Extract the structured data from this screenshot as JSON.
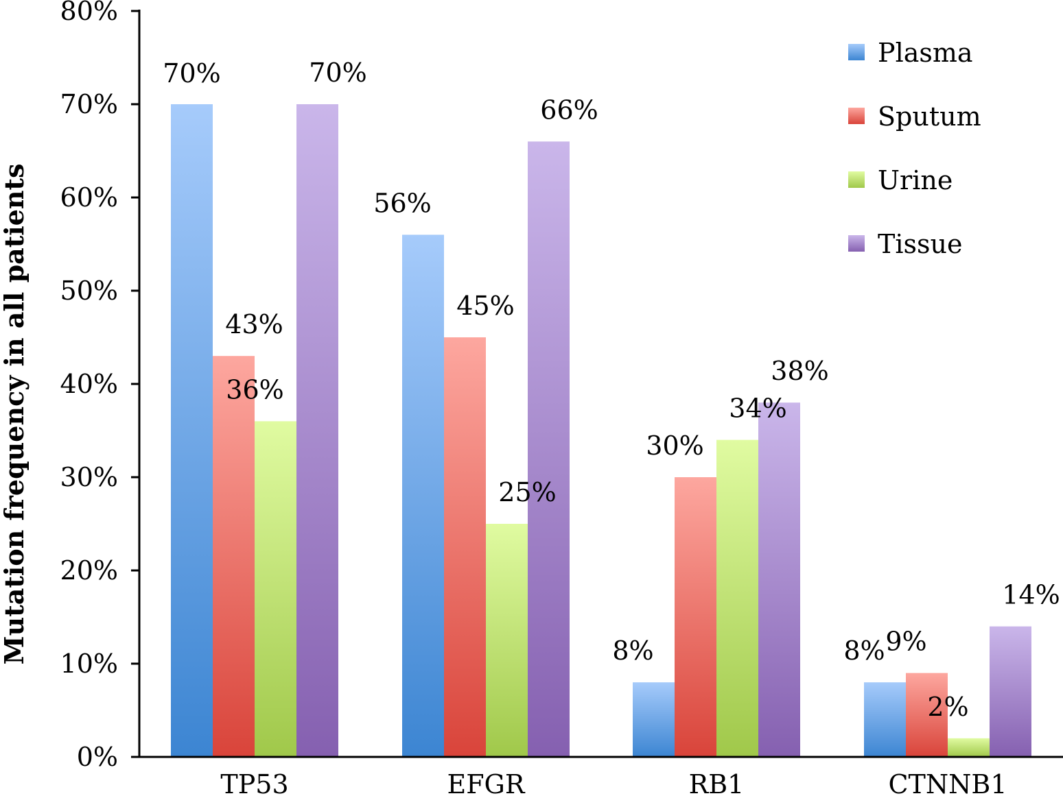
{
  "chart_data": {
    "type": "bar",
    "title": "",
    "xlabel": "",
    "ylabel": "Mutation frequency in all patients",
    "categories": [
      "TP53",
      "EFGR",
      "RB1",
      "CTNNB1"
    ],
    "series": [
      {
        "name": "Plasma",
        "values": [
          70,
          56,
          8,
          8
        ],
        "labels": [
          "70%",
          "56%",
          "8%",
          "8%"
        ],
        "color_top": "#a6cbfb",
        "color_bottom": "#3c85d2"
      },
      {
        "name": "Sputum",
        "values": [
          43,
          45,
          30,
          9
        ],
        "labels": [
          "43%",
          "45%",
          "30%",
          "9%"
        ],
        "color_top": "#fda79f",
        "color_bottom": "#d9443a"
      },
      {
        "name": "Urine",
        "values": [
          36,
          25,
          34,
          2
        ],
        "labels": [
          "36%",
          "25%",
          "34%",
          "2%"
        ],
        "color_top": "#e0fba1",
        "color_bottom": "#a0c84a"
      },
      {
        "name": "Tissue",
        "values": [
          70,
          66,
          38,
          14
        ],
        "labels": [
          "70%",
          "66%",
          "38%",
          "14%"
        ],
        "color_top": "#cab6ea",
        "color_bottom": "#8560b0"
      }
    ],
    "ylim": [
      0,
      80
    ],
    "yticks": [
      0,
      10,
      20,
      30,
      40,
      50,
      60,
      70,
      80
    ],
    "ytick_labels": [
      "0%",
      "10%",
      "20%",
      "30%",
      "40%",
      "50%",
      "60%",
      "70%",
      "80%"
    ],
    "grid": false,
    "legend_position": "top-right"
  }
}
